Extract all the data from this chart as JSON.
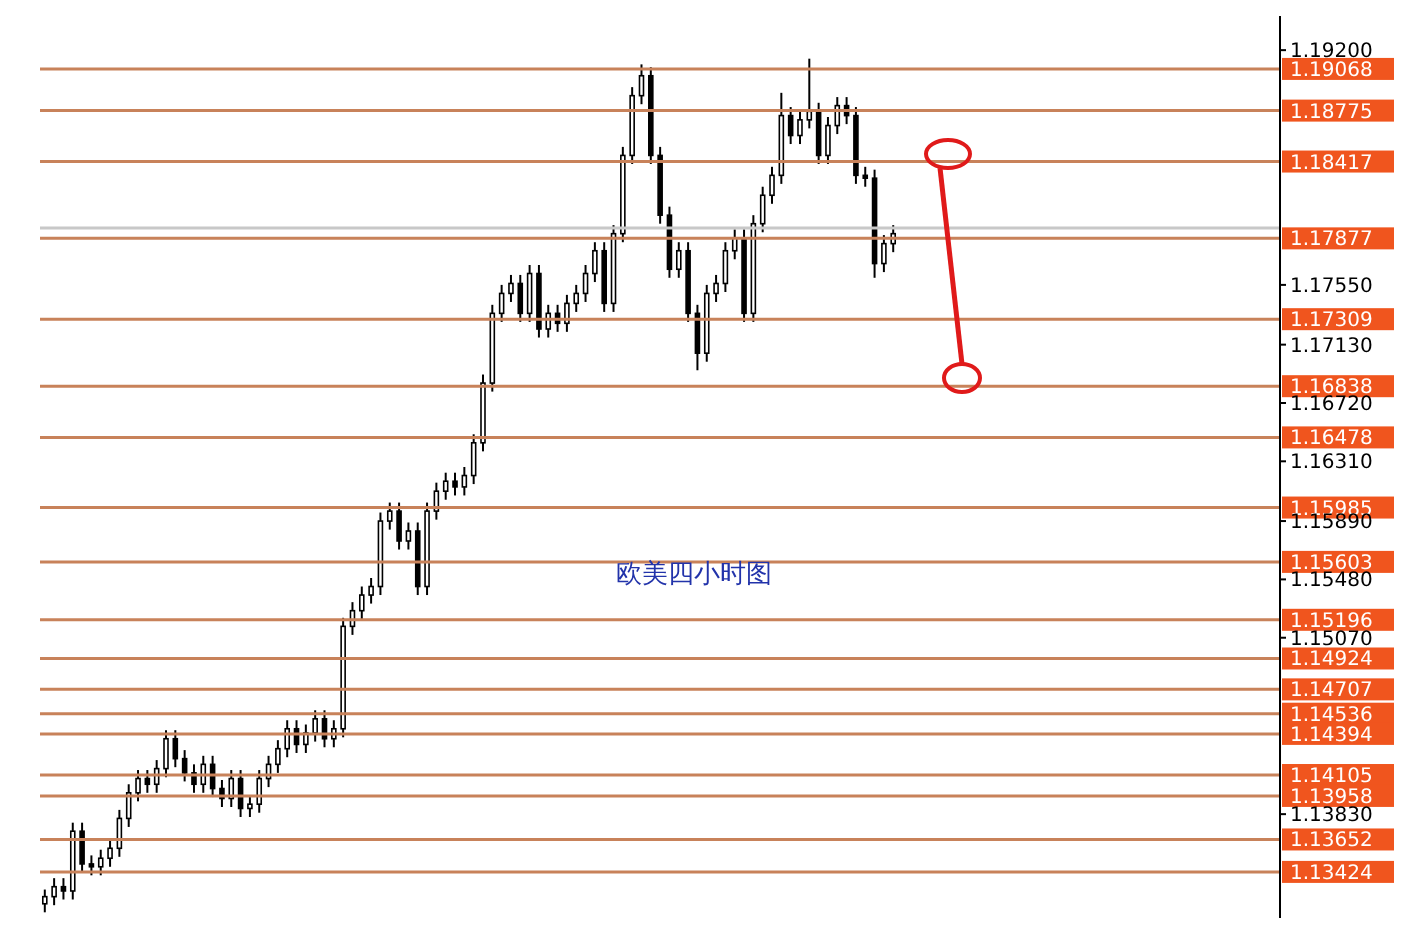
{
  "chart_data": {
    "type": "candlestick",
    "annotations": [
      "欧美四小时图"
    ],
    "tick_labels": "y",
    "categories": [
      null,
      null,
      null,
      null,
      null,
      null,
      null,
      null,
      null,
      null,
      null,
      null,
      null,
      null,
      null,
      null,
      null,
      null,
      null,
      null,
      null,
      null,
      null,
      null,
      null,
      null,
      null,
      null,
      null,
      null,
      null,
      null,
      null,
      null,
      null,
      null,
      null,
      null,
      null,
      null,
      null,
      null,
      null,
      null,
      null,
      null,
      null,
      null,
      null,
      null,
      null,
      null,
      null,
      null,
      null,
      null,
      null,
      null,
      null,
      null,
      null,
      null,
      null,
      null,
      null,
      null,
      null,
      null,
      null,
      null,
      null,
      null,
      null,
      null,
      null,
      null,
      null,
      null,
      null,
      null,
      null,
      null,
      null,
      null,
      null,
      null,
      null,
      null,
      null,
      null,
      null,
      null,
      null,
      null,
      null,
      null,
      null,
      null,
      null,
      null,
      null,
      null,
      null,
      null,
      null,
      null,
      null,
      null,
      null,
      null,
      null,
      null,
      null,
      null,
      null,
      null,
      null,
      null,
      null,
      null,
      null,
      null,
      null,
      null,
      null,
      null,
      null,
      null,
      null,
      null,
      null,
      null,
      null
    ],
    "ohlc": [
      [
        1.132,
        1.133,
        1.1314,
        1.1325
      ],
      [
        1.1325,
        1.1338,
        1.1319,
        1.1332
      ],
      [
        1.1332,
        1.1338,
        1.1323,
        1.1329
      ],
      [
        1.1329,
        1.1377,
        1.1323,
        1.1371
      ],
      [
        1.1371,
        1.1377,
        1.1342,
        1.1348
      ],
      [
        1.1348,
        1.1354,
        1.134,
        1.1346
      ],
      [
        1.1346,
        1.1358,
        1.134,
        1.1352
      ],
      [
        1.1352,
        1.1365,
        1.1346,
        1.1359
      ],
      [
        1.1359,
        1.1386,
        1.1353,
        1.138
      ],
      [
        1.138,
        1.1404,
        1.1374,
        1.1398
      ],
      [
        1.1398,
        1.1414,
        1.1392,
        1.1408
      ],
      [
        1.1408,
        1.1414,
        1.1398,
        1.1404
      ],
      [
        1.1404,
        1.1421,
        1.1398,
        1.1415
      ],
      [
        1.1415,
        1.1442,
        1.1409,
        1.1436
      ],
      [
        1.1436,
        1.1442,
        1.1416,
        1.1422
      ],
      [
        1.1422,
        1.1428,
        1.1406,
        1.1412
      ],
      [
        1.1412,
        1.1418,
        1.1398,
        1.1404
      ],
      [
        1.1404,
        1.1424,
        1.1398,
        1.1418
      ],
      [
        1.1418,
        1.1424,
        1.1395,
        1.1401
      ],
      [
        1.1401,
        1.1407,
        1.1388,
        1.1394
      ],
      [
        1.1394,
        1.1414,
        1.1388,
        1.1408
      ],
      [
        1.1408,
        1.1414,
        1.1381,
        1.1387
      ],
      [
        1.1387,
        1.1396,
        1.1381,
        1.139
      ],
      [
        1.139,
        1.1414,
        1.1384,
        1.1408
      ],
      [
        1.1408,
        1.1424,
        1.1402,
        1.1418
      ],
      [
        1.1418,
        1.1435,
        1.1412,
        1.1429
      ],
      [
        1.1429,
        1.1449,
        1.1423,
        1.1443
      ],
      [
        1.1443,
        1.1449,
        1.1426,
        1.1432
      ],
      [
        1.1432,
        1.1446,
        1.1426,
        1.144
      ],
      [
        1.144,
        1.1456,
        1.1434,
        1.145
      ],
      [
        1.145,
        1.1456,
        1.143,
        1.1436
      ],
      [
        1.1436,
        1.1449,
        1.143,
        1.1443
      ],
      [
        1.1443,
        1.1521,
        1.1437,
        1.1515
      ],
      [
        1.1515,
        1.1532,
        1.1509,
        1.1526
      ],
      [
        1.1526,
        1.1543,
        1.152,
        1.1537
      ],
      [
        1.1537,
        1.1549,
        1.1531,
        1.1543
      ],
      [
        1.1543,
        1.1595,
        1.1537,
        1.1589
      ],
      [
        1.1589,
        1.1602,
        1.1583,
        1.1596
      ],
      [
        1.1596,
        1.1602,
        1.1569,
        1.1575
      ],
      [
        1.1575,
        1.1588,
        1.1569,
        1.1582
      ],
      [
        1.1582,
        1.1588,
        1.1537,
        1.1543
      ],
      [
        1.1543,
        1.1602,
        1.1537,
        1.1596
      ],
      [
        1.1596,
        1.1616,
        1.159,
        1.161
      ],
      [
        1.161,
        1.1623,
        1.1604,
        1.1617
      ],
      [
        1.1617,
        1.1623,
        1.1607,
        1.1613
      ],
      [
        1.1613,
        1.1627,
        1.1607,
        1.1621
      ],
      [
        1.1621,
        1.165,
        1.1615,
        1.1644
      ],
      [
        1.1644,
        1.1692,
        1.1638,
        1.1686
      ],
      [
        1.1686,
        1.1741,
        1.168,
        1.1735
      ],
      [
        1.1735,
        1.1755,
        1.1729,
        1.1749
      ],
      [
        1.1749,
        1.1762,
        1.1743,
        1.1756
      ],
      [
        1.1756,
        1.1762,
        1.1729,
        1.1735
      ],
      [
        1.1735,
        1.1769,
        1.1729,
        1.1763
      ],
      [
        1.1763,
        1.1769,
        1.1718,
        1.1724
      ],
      [
        1.1724,
        1.1741,
        1.1718,
        1.1735
      ],
      [
        1.1735,
        1.1741,
        1.1722,
        1.1728
      ],
      [
        1.1728,
        1.1748,
        1.1722,
        1.1742
      ],
      [
        1.1742,
        1.1755,
        1.1736,
        1.1749
      ],
      [
        1.1749,
        1.1769,
        1.1743,
        1.1763
      ],
      [
        1.1763,
        1.1785,
        1.1757,
        1.1779
      ],
      [
        1.1779,
        1.1785,
        1.1736,
        1.1742
      ],
      [
        1.1742,
        1.1797,
        1.1736,
        1.1791
      ],
      [
        1.1791,
        1.1852,
        1.1785,
        1.1846
      ],
      [
        1.1846,
        1.1894,
        1.184,
        1.1888
      ],
      [
        1.1888,
        1.191,
        1.1882,
        1.1902
      ],
      [
        1.1902,
        1.1908,
        1.184,
        1.1846
      ],
      [
        1.1846,
        1.1852,
        1.1798,
        1.1804
      ],
      [
        1.1804,
        1.181,
        1.176,
        1.1766
      ],
      [
        1.1766,
        1.1785,
        1.176,
        1.1779
      ],
      [
        1.1779,
        1.1785,
        1.1729,
        1.1735
      ],
      [
        1.1735,
        1.1741,
        1.1695,
        1.1707
      ],
      [
        1.1707,
        1.1755,
        1.1701,
        1.1749
      ],
      [
        1.1749,
        1.1762,
        1.1743,
        1.1756
      ],
      [
        1.1756,
        1.1785,
        1.175,
        1.1779
      ],
      [
        1.1779,
        1.1794,
        1.1773,
        1.1788
      ],
      [
        1.1788,
        1.1794,
        1.1729,
        1.1735
      ],
      [
        1.1735,
        1.1804,
        1.1729,
        1.1798
      ],
      [
        1.1798,
        1.1824,
        1.1792,
        1.1818
      ],
      [
        1.1818,
        1.1838,
        1.1812,
        1.1832
      ],
      [
        1.1832,
        1.189,
        1.1826,
        1.1874
      ],
      [
        1.1874,
        1.188,
        1.1854,
        1.186
      ],
      [
        1.186,
        1.1877,
        1.1854,
        1.1871
      ],
      [
        1.1871,
        1.1914,
        1.1865,
        1.1877
      ],
      [
        1.1877,
        1.1883,
        1.184,
        1.1846
      ],
      [
        1.1846,
        1.1873,
        1.184,
        1.1867
      ],
      [
        1.1867,
        1.1887,
        1.1861,
        1.1881
      ],
      [
        1.1881,
        1.1887,
        1.1868,
        1.1874
      ],
      [
        1.1874,
        1.188,
        1.1826,
        1.1832
      ],
      [
        1.1832,
        1.1838,
        1.1824,
        1.183
      ],
      [
        1.183,
        1.1836,
        1.176,
        1.177
      ],
      [
        1.177,
        1.179,
        1.1764,
        1.1784
      ],
      [
        1.1784,
        1.1797,
        1.1778,
        1.1791
      ],
      null,
      null,
      null,
      null,
      null,
      null,
      null,
      null,
      null,
      null,
      null,
      null,
      null,
      null,
      null,
      null,
      null,
      null,
      null,
      null,
      null,
      null,
      null,
      null,
      null,
      null,
      null,
      null,
      null,
      null,
      null,
      null,
      null,
      null,
      null,
      null,
      null,
      null,
      null,
      null,
      null
    ],
    "ylim": [
      1.131,
      1.1944
    ],
    "yticks": [
      {
        "value": 1.192,
        "label": "1.19200"
      },
      {
        "value": 1.1755,
        "label": "1.17550"
      },
      {
        "value": 1.1713,
        "label": "1.17130"
      },
      {
        "value": 1.1672,
        "label": "1.16720"
      },
      {
        "value": 1.1631,
        "label": "1.16310"
      },
      {
        "value": 1.1589,
        "label": "1.15890"
      },
      {
        "value": 1.1548,
        "label": "1.15480"
      },
      {
        "value": 1.1507,
        "label": "1.15070"
      },
      {
        "value": 1.1383,
        "label": "1.13830"
      }
    ],
    "ref_lines": [
      {
        "axis": "y",
        "value": 1.19068,
        "label": "1.19068",
        "color": "#c8825a"
      },
      {
        "axis": "y",
        "value": 1.18775,
        "label": "1.18775",
        "color": "#c8825a"
      },
      {
        "axis": "y",
        "value": 1.18417,
        "label": "1.18417",
        "color": "#c8825a"
      },
      {
        "axis": "y",
        "value": 1.1795,
        "color": "#c8c8c8"
      },
      {
        "axis": "y",
        "value": 1.17877,
        "label": "1.17877",
        "color": "#c8825a"
      },
      {
        "axis": "y",
        "value": 1.17309,
        "label": "1.17309",
        "color": "#c8825a"
      },
      {
        "axis": "y",
        "value": 1.16838,
        "label": "1.16838",
        "color": "#c8825a"
      },
      {
        "axis": "y",
        "value": 1.16478,
        "label": "1.16478",
        "color": "#c8825a"
      },
      {
        "axis": "y",
        "value": 1.15985,
        "label": "1.15985",
        "color": "#c8825a"
      },
      {
        "axis": "y",
        "value": 1.15603,
        "label": "1.15603",
        "color": "#c8825a"
      },
      {
        "axis": "y",
        "value": 1.15196,
        "label": "1.15196",
        "color": "#c8825a"
      },
      {
        "axis": "y",
        "value": 1.14924,
        "label": "1.14924",
        "color": "#c8825a"
      },
      {
        "axis": "y",
        "value": 1.14707,
        "label": "1.14707",
        "color": "#c8825a"
      },
      {
        "axis": "y",
        "value": 1.14536,
        "label": "1.14536",
        "color": "#c8825a"
      },
      {
        "axis": "y",
        "value": 1.14394,
        "label": "1.14394",
        "color": "#c8825a"
      },
      {
        "axis": "y",
        "value": 1.14105,
        "label": "1.14105",
        "color": "#c8825a"
      },
      {
        "axis": "y",
        "value": 1.13958,
        "label": "1.13958",
        "color": "#c8825a"
      },
      {
        "axis": "y",
        "value": 1.13652,
        "label": "1.13652",
        "color": "#c8825a"
      },
      {
        "axis": "y",
        "value": 1.13424,
        "label": "1.13424",
        "color": "#c8825a"
      }
    ]
  }
}
